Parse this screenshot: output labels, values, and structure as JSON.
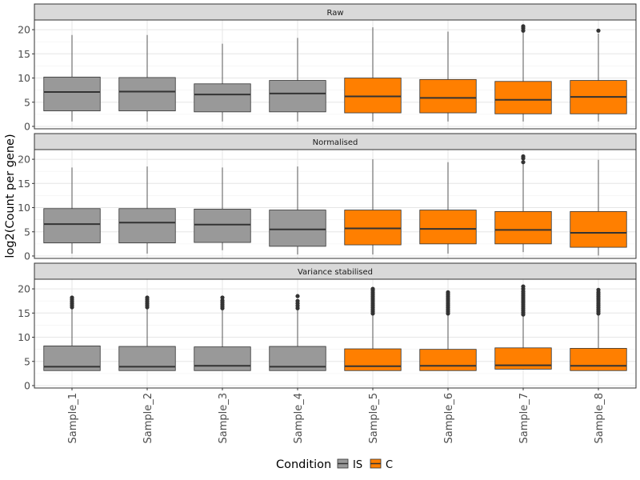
{
  "chart_data": {
    "type": "boxplot",
    "ylabel": "log2(Count per gene)",
    "ylim": [
      -0.5,
      22
    ],
    "yticks": [
      0,
      5,
      10,
      15,
      20
    ],
    "categories": [
      "Sample_1",
      "Sample_2",
      "Sample_3",
      "Sample_4",
      "Sample_5",
      "Sample_6",
      "Sample_7",
      "Sample_8"
    ],
    "groups": [
      "IS",
      "IS",
      "IS",
      "IS",
      "C",
      "C",
      "C",
      "C"
    ],
    "legend": {
      "title": "Condition",
      "position": "bottom",
      "items": [
        {
          "label": "IS",
          "color": "#999999"
        },
        {
          "label": "C",
          "color": "#ff7f00"
        }
      ]
    },
    "panels": [
      {
        "title": "Raw",
        "boxes": [
          {
            "q1": 3.2,
            "median": 7.1,
            "q3": 10.2,
            "whisker_low": 1.0,
            "whisker_high": 18.9,
            "outliers": []
          },
          {
            "q1": 3.2,
            "median": 7.2,
            "q3": 10.1,
            "whisker_low": 1.0,
            "whisker_high": 18.9,
            "outliers": []
          },
          {
            "q1": 3.0,
            "median": 6.6,
            "q3": 8.8,
            "whisker_low": 1.0,
            "whisker_high": 17.1,
            "outliers": []
          },
          {
            "q1": 3.0,
            "median": 6.8,
            "q3": 9.5,
            "whisker_low": 1.0,
            "whisker_high": 18.3,
            "outliers": []
          },
          {
            "q1": 2.8,
            "median": 6.2,
            "q3": 10.0,
            "whisker_low": 1.0,
            "whisker_high": 20.5,
            "outliers": []
          },
          {
            "q1": 2.8,
            "median": 5.9,
            "q3": 9.7,
            "whisker_low": 1.0,
            "whisker_high": 19.6,
            "outliers": []
          },
          {
            "q1": 2.6,
            "median": 5.5,
            "q3": 9.3,
            "whisker_low": 1.0,
            "whisker_high": 19.5,
            "outliers": [
              19.8,
              20.3,
              20.7
            ]
          },
          {
            "q1": 2.6,
            "median": 6.1,
            "q3": 9.5,
            "whisker_low": 1.0,
            "whisker_high": 19.2,
            "outliers": [
              19.8
            ]
          }
        ]
      },
      {
        "title": "Normalised",
        "boxes": [
          {
            "q1": 2.7,
            "median": 6.6,
            "q3": 9.8,
            "whisker_low": 0.5,
            "whisker_high": 18.3,
            "outliers": []
          },
          {
            "q1": 2.7,
            "median": 6.9,
            "q3": 9.8,
            "whisker_low": 0.5,
            "whisker_high": 18.5,
            "outliers": []
          },
          {
            "q1": 2.8,
            "median": 6.5,
            "q3": 9.7,
            "whisker_low": 1.2,
            "whisker_high": 18.3,
            "outliers": []
          },
          {
            "q1": 2.0,
            "median": 5.5,
            "q3": 9.5,
            "whisker_low": 0.3,
            "whisker_high": 18.5,
            "outliers": []
          },
          {
            "q1": 2.3,
            "median": 5.7,
            "q3": 9.5,
            "whisker_low": 0.3,
            "whisker_high": 20.0,
            "outliers": []
          },
          {
            "q1": 2.5,
            "median": 5.6,
            "q3": 9.5,
            "whisker_low": 0.5,
            "whisker_high": 19.4,
            "outliers": []
          },
          {
            "q1": 2.5,
            "median": 5.4,
            "q3": 9.2,
            "whisker_low": 0.8,
            "whisker_high": 19.0,
            "outliers": [
              19.4,
              20.2,
              20.6
            ]
          },
          {
            "q1": 1.8,
            "median": 4.8,
            "q3": 9.2,
            "whisker_low": 0.1,
            "whisker_high": 19.9,
            "outliers": []
          }
        ]
      },
      {
        "title": "Variance stabilised",
        "boxes": [
          {
            "q1": 3.1,
            "median": 3.9,
            "q3": 8.2,
            "whisker_low": 3.1,
            "whisker_high": 16.0,
            "outliers": [
              16.2,
              16.6,
              17.0,
              17.4,
              17.8,
              18.2
            ]
          },
          {
            "q1": 3.1,
            "median": 3.9,
            "q3": 8.1,
            "whisker_low": 3.1,
            "whisker_high": 16.0,
            "outliers": [
              16.2,
              16.6,
              17.0,
              17.4,
              17.8,
              18.2
            ]
          },
          {
            "q1": 3.1,
            "median": 4.1,
            "q3": 8.0,
            "whisker_low": 3.1,
            "whisker_high": 15.8,
            "outliers": [
              16.0,
              16.4,
              16.8,
              17.2,
              17.6,
              18.2
            ]
          },
          {
            "q1": 3.1,
            "median": 3.9,
            "q3": 8.1,
            "whisker_low": 3.1,
            "whisker_high": 15.8,
            "outliers": [
              16.0,
              16.5,
              17.0,
              17.5,
              18.5
            ]
          },
          {
            "q1": 3.1,
            "median": 4.0,
            "q3": 7.6,
            "whisker_low": 3.1,
            "whisker_high": 14.6,
            "outliers": [
              14.9,
              15.3,
              15.7,
              16.1,
              16.5,
              16.9,
              17.3,
              17.7,
              18.1,
              18.5,
              18.9,
              19.3,
              19.7,
              20.0
            ]
          },
          {
            "q1": 3.1,
            "median": 4.1,
            "q3": 7.5,
            "whisker_low": 3.1,
            "whisker_high": 14.6,
            "outliers": [
              14.9,
              15.3,
              15.7,
              16.1,
              16.5,
              16.9,
              17.3,
              17.7,
              18.1,
              18.5,
              18.9,
              19.3
            ]
          },
          {
            "q1": 3.4,
            "median": 4.2,
            "q3": 7.8,
            "whisker_low": 3.4,
            "whisker_high": 14.4,
            "outliers": [
              14.7,
              15.1,
              15.5,
              15.9,
              16.3,
              16.7,
              17.1,
              17.5,
              17.9,
              18.3,
              18.7,
              19.1,
              19.5,
              20.0,
              20.5
            ]
          },
          {
            "q1": 3.1,
            "median": 4.1,
            "q3": 7.7,
            "whisker_low": 3.1,
            "whisker_high": 14.6,
            "outliers": [
              14.9,
              15.3,
              15.7,
              16.1,
              16.5,
              16.9,
              17.3,
              17.7,
              18.1,
              18.5,
              18.9,
              19.3,
              19.8
            ]
          }
        ]
      }
    ]
  }
}
